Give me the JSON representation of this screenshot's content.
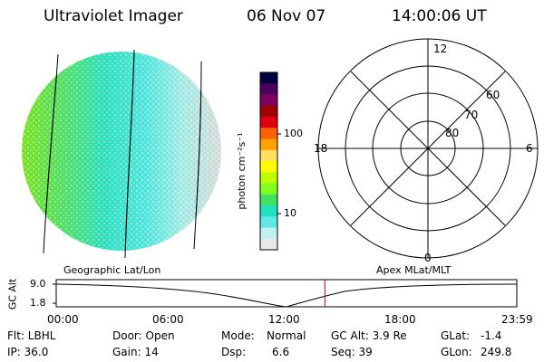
{
  "header": {
    "instrument": "Ultraviolet Imager",
    "date": "06 Nov 07",
    "time": "14:00:06 UT"
  },
  "colorbar": {
    "label": "photon cm⁻²s⁻¹",
    "tick_high": "100",
    "tick_low": "10",
    "colors": [
      "#000040",
      "#4b0060",
      "#800060",
      "#a00000",
      "#e00010",
      "#ff6000",
      "#ffa000",
      "#ffe060",
      "#ffff00",
      "#c0ff00",
      "#80ff20",
      "#40e060",
      "#20e0c0",
      "#60e8e8",
      "#c0f0f0",
      "#e8e8e8"
    ]
  },
  "polar": {
    "lat_labels": [
      "80",
      "70",
      "60"
    ],
    "mlt_top": "12",
    "mlt_left": "18",
    "mlt_right": "6",
    "mlt_bottom": "0"
  },
  "timeline": {
    "left_label": "Geographic Lat/Lon",
    "right_label": "Apex MLat/MLT",
    "axis_label": "GC Alt",
    "y_top": "9.0",
    "y_bottom": "1.8",
    "x_ticks": [
      "00:00",
      "06:00",
      "12:00",
      "18:00",
      "23:59"
    ],
    "current_time_fraction": 0.5833,
    "marker_color": "#cc0000"
  },
  "status": {
    "flt": "Flt: LBHL",
    "ip": "IP: 36.0",
    "door": "Door: Open",
    "gain": "Gain: 14",
    "mode_label": "Mode:",
    "mode_value": "Normal",
    "dsp_label": "Dsp:",
    "dsp_value": "6.6",
    "gc_alt": "GC Alt: 3.9 Re",
    "seq": "Seq: 39",
    "glat_label": "GLat:",
    "glat_value": "-1.4",
    "glon_label": "GLon:",
    "glon_value": "249.8"
  }
}
